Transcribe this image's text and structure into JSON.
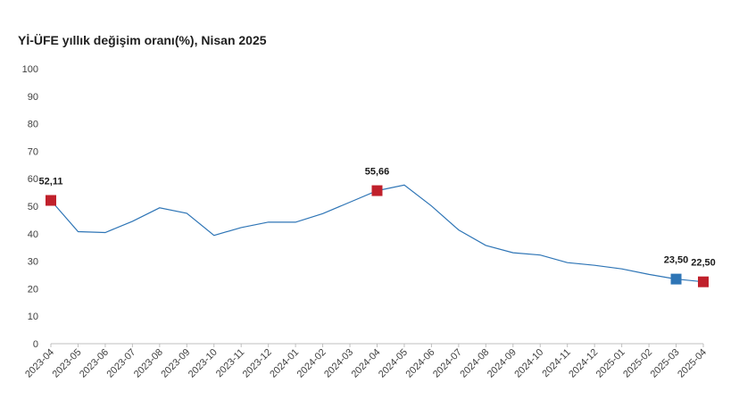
{
  "chart_data": {
    "type": "line",
    "title": "Yİ-ÜFE yıllık değişim oranı(%), Nisan 2025",
    "xlabel": "",
    "ylabel": "",
    "ylim": [
      0,
      100
    ],
    "yticks": [
      0,
      10,
      20,
      30,
      40,
      50,
      60,
      70,
      80,
      90,
      100
    ],
    "grid": false,
    "categories": [
      "2023-04",
      "2023-05",
      "2023-06",
      "2023-07",
      "2023-08",
      "2023-09",
      "2023-10",
      "2023-11",
      "2023-12",
      "2024-01",
      "2024-02",
      "2024-03",
      "2024-04",
      "2024-05",
      "2024-06",
      "2024-07",
      "2024-08",
      "2024-09",
      "2024-10",
      "2024-11",
      "2024-12",
      "2025-01",
      "2025-02",
      "2025-03",
      "2025-04"
    ],
    "series": [
      {
        "name": "Yİ-ÜFE yıllık değişim oranı(%)",
        "color": "#2e75b6",
        "values": [
          52.11,
          40.76,
          40.42,
          44.5,
          49.41,
          47.44,
          39.39,
          42.25,
          44.22,
          44.2,
          47.29,
          51.47,
          55.66,
          57.68,
          50.09,
          41.37,
          35.75,
          33.09,
          32.24,
          29.47,
          28.52,
          27.2,
          25.21,
          23.5,
          22.5
        ]
      }
    ],
    "annotations": [
      {
        "category": "2023-04",
        "value": 52.11,
        "label": "52,11",
        "marker": "square",
        "color": "#c0202b"
      },
      {
        "category": "2024-04",
        "value": 55.66,
        "label": "55,66",
        "marker": "square",
        "color": "#c0202b"
      },
      {
        "category": "2025-03",
        "value": 23.5,
        "label": "23,50",
        "marker": "square",
        "color": "#2e75b6"
      },
      {
        "category": "2025-04",
        "value": 22.5,
        "label": "22,50",
        "marker": "square",
        "color": "#c0202b"
      }
    ]
  }
}
